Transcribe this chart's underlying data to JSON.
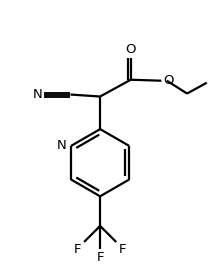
{
  "bg_color": "#ffffff",
  "line_color": "#000000",
  "line_width": 1.6,
  "figsize": [
    2.2,
    2.78
  ],
  "dpi": 100,
  "xlim": [
    0,
    11
  ],
  "ylim": [
    0,
    14
  ]
}
